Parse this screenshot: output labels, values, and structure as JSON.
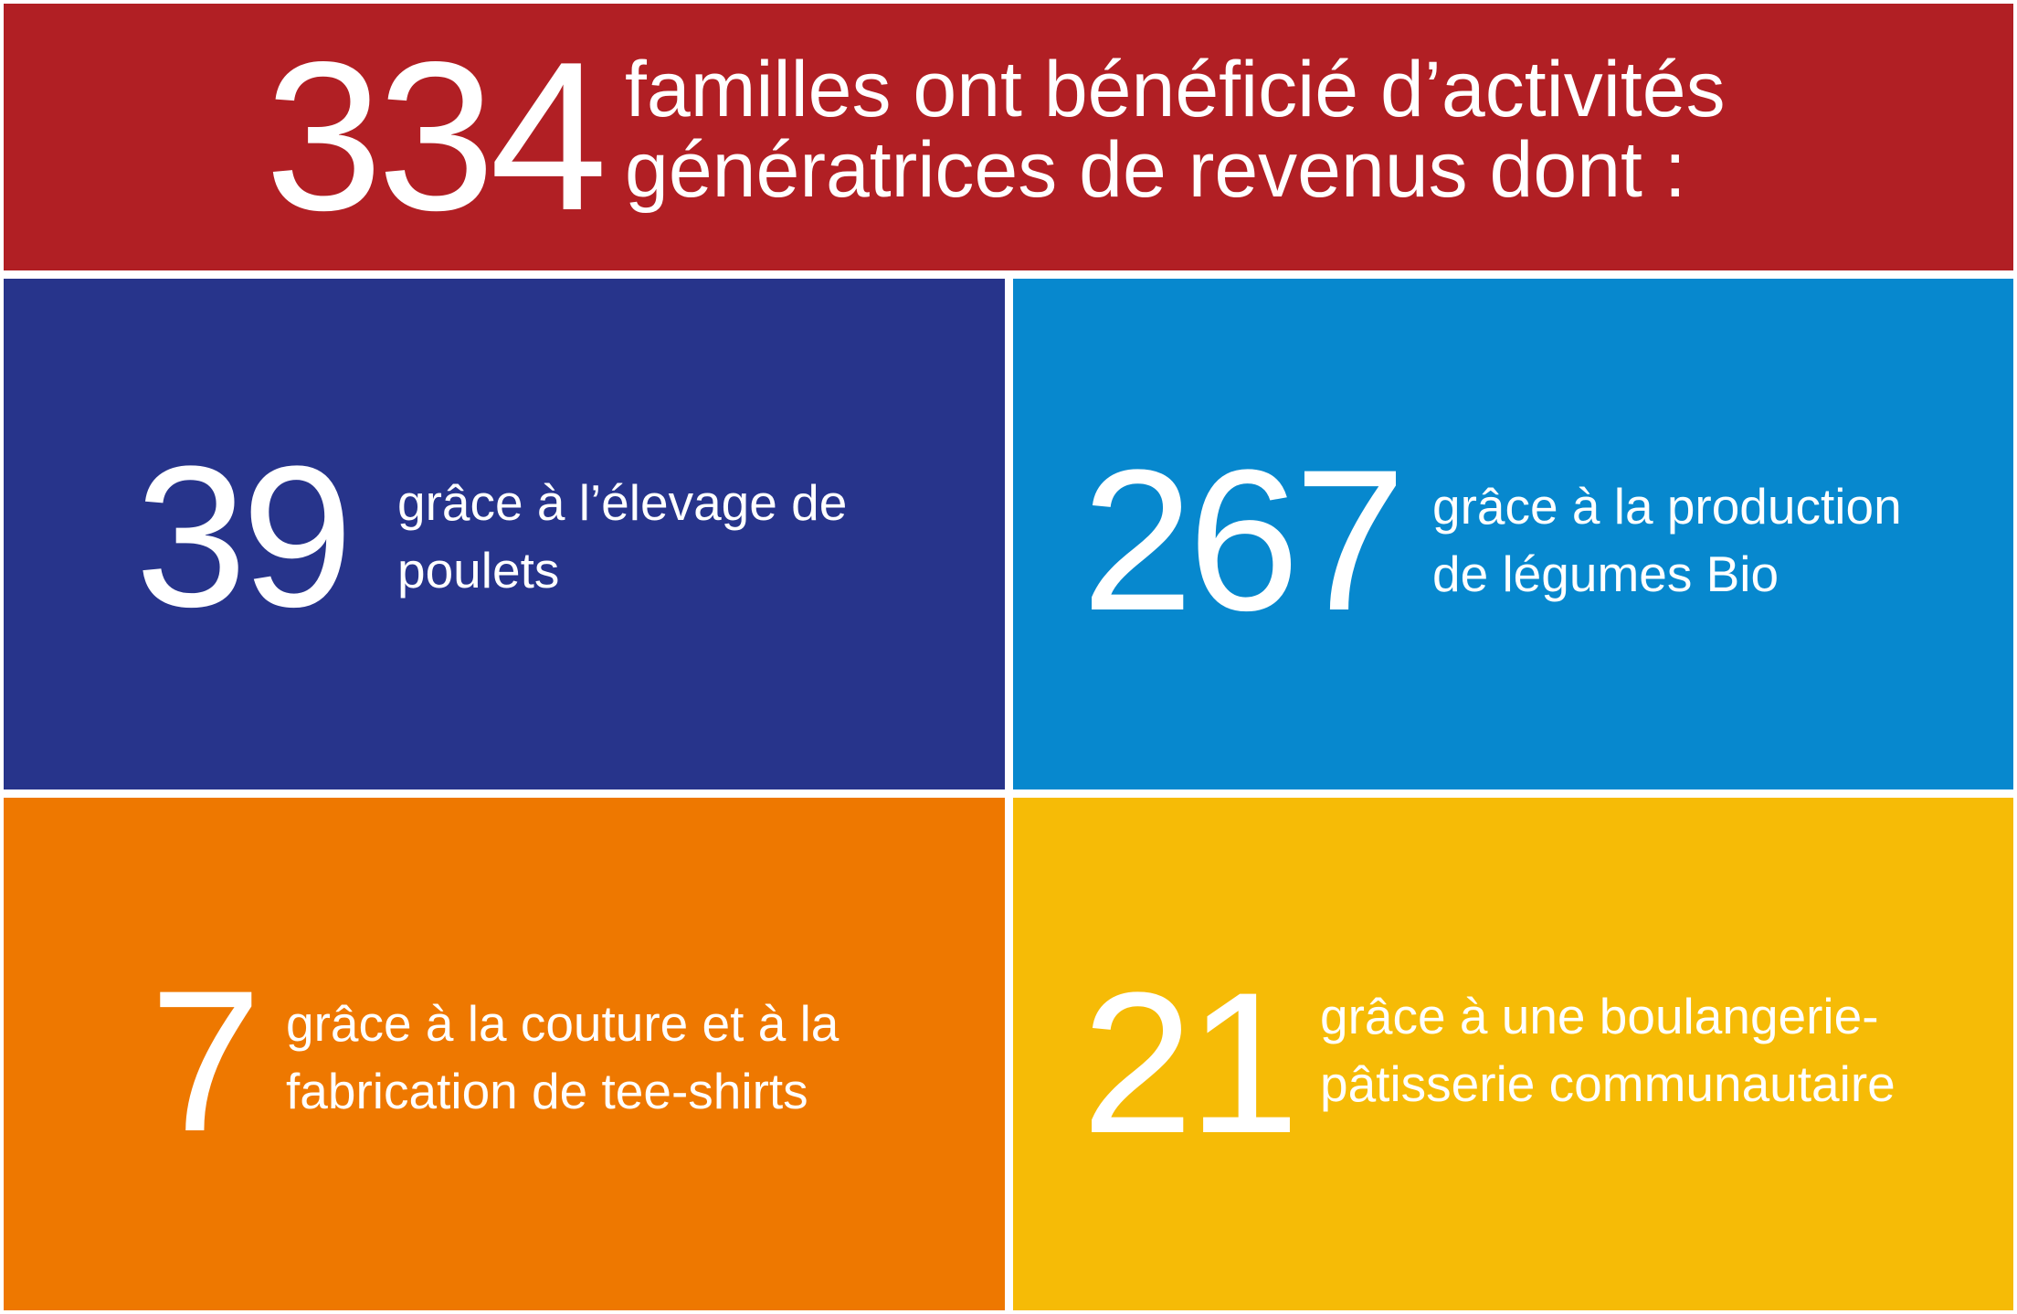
{
  "header": {
    "number": "334",
    "line1": "familles ont bénéficié d’activités",
    "line2": "génératrices de revenus dont :",
    "color": "#b11f24"
  },
  "panels": [
    {
      "number": "39",
      "line1": "grâce à l’élevage de",
      "line2": "poulets",
      "color": "#27348b"
    },
    {
      "number": "267",
      "line1": "grâce à la production",
      "line2": "de légumes Bio",
      "color": "#0788ce"
    },
    {
      "number": "7",
      "line1": "grâce à la couture et à la",
      "line2": "fabrication de tee-shirts",
      "color": "#ee7800"
    },
    {
      "number": "21",
      "line1": "grâce à une boulangerie-",
      "line2": "pâtisserie communautaire",
      "color": "#f6bb06"
    }
  ]
}
